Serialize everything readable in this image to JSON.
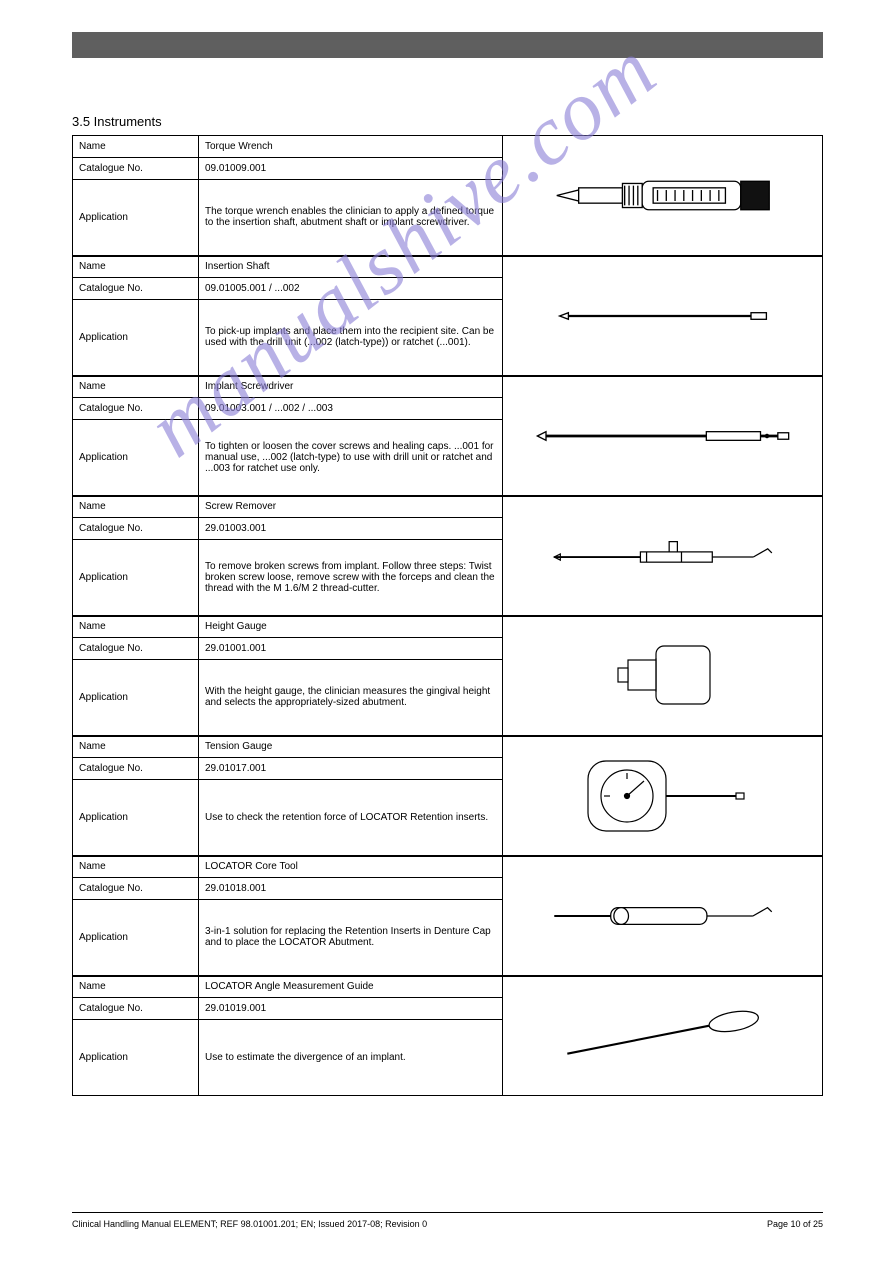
{
  "header": {
    "bar_color": "#5f5f5f"
  },
  "section_title": "3.5 Instruments",
  "watermark_text": "manualshive.com",
  "groups": [
    {
      "rows": [
        {
          "label": "Name",
          "value": "Torque Wrench"
        },
        {
          "label": "Catalogue No.",
          "value": "09.01009.001"
        },
        {
          "label": "Application",
          "value": "The torque wrench enables the clinician to apply a defined torque to the insertion shaft, abutment shaft or implant screwdriver."
        }
      ],
      "image": "torque_wrench"
    },
    {
      "rows": [
        {
          "label": "Name",
          "value": "Insertion Shaft"
        },
        {
          "label": "Catalogue No.",
          "value": "09.01005.001 / ...002"
        },
        {
          "label": "Application",
          "value": "To pick-up implants and place them into the recipient site. Can be used with the drill unit (...002 (latch-type)) or ratchet (...001)."
        }
      ],
      "image": "insertion_shaft"
    },
    {
      "rows": [
        {
          "label": "Name",
          "value": "Implant Screwdriver"
        },
        {
          "label": "Catalogue No.",
          "value": "09.01003.001 / ...002 / ...003"
        },
        {
          "label": "Application",
          "value": "To tighten or loosen the cover screws and healing caps. ...001 for manual use, ...002 (latch-type) to use with drill unit or ratchet and ...003 for ratchet use only."
        }
      ],
      "image": "implant_screwdriver"
    },
    {
      "rows": [
        {
          "label": "Name",
          "value": "Screw Remover"
        },
        {
          "label": "Catalogue No.",
          "value": "29.01003.001"
        },
        {
          "label": "Application",
          "value": "To remove broken screws from implant. Follow three steps: Twist broken screw loose, remove screw with the forceps and clean the thread with the M 1.6/M 2 thread-cutter."
        }
      ],
      "image": "screw_remover"
    },
    {
      "rows": [
        {
          "label": "Name",
          "value": "Height Gauge"
        },
        {
          "label": "Catalogue No.",
          "value": "29.01001.001"
        },
        {
          "label": "Application",
          "value": "With the height gauge, the clinician measures the gingival height and selects the appropriately-sized abutment."
        }
      ],
      "image": "height_gauge"
    },
    {
      "rows": [
        {
          "label": "Name",
          "value": "Tension Gauge"
        },
        {
          "label": "Catalogue No.",
          "value": "29.01017.001"
        },
        {
          "label": "Application",
          "value": "Use to check the retention force of LOCATOR Retention inserts."
        }
      ],
      "image": "tension_gauge"
    },
    {
      "rows": [
        {
          "label": "Name",
          "value": "LOCATOR Core Tool"
        },
        {
          "label": "Catalogue No.",
          "value": "29.01018.001"
        },
        {
          "label": "Application",
          "value": "3-in-1 solution for replacing the Retention Inserts in Denture Cap and to place the LOCATOR Abutment."
        }
      ],
      "image": "locator_core_tool"
    },
    {
      "rows": [
        {
          "label": "Name",
          "value": "LOCATOR Angle Measurement Guide"
        },
        {
          "label": "Catalogue No.",
          "value": "29.01019.001"
        },
        {
          "label": "Application",
          "value": "Use to estimate the divergence of an implant."
        }
      ],
      "image": "angle_guide"
    }
  ],
  "footer": {
    "left": "Clinical Handling Manual ELEMENT; REF 98.01001.201; EN; Issued 2017-08; Revision 0",
    "right": "Page 10 of 25"
  },
  "svg": {
    "stroke": "#000000",
    "stroke_width": 1.2,
    "fill": "#ffffff"
  }
}
